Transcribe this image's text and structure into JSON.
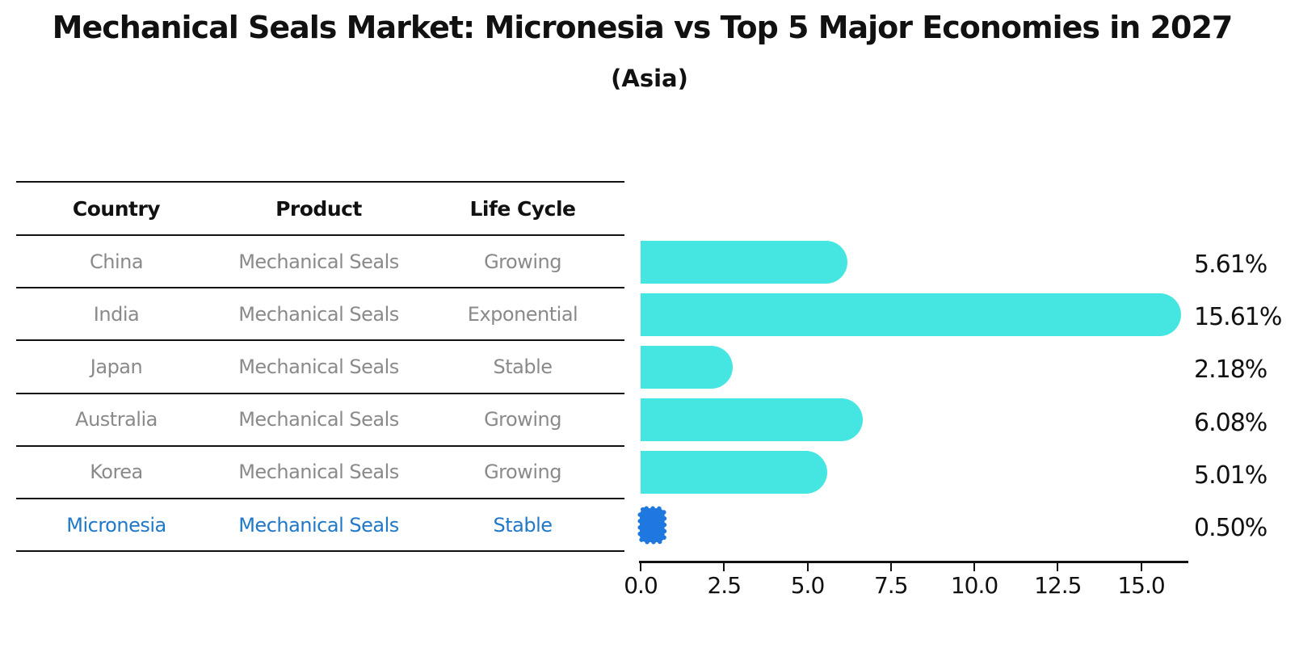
{
  "title": "Mechanical Seals Market: Micronesia vs Top 5 Major Economies in 2027",
  "subtitle": "(Asia)",
  "table": {
    "headers": {
      "country": "Country",
      "product": "Product",
      "life_cycle": "Life Cycle"
    },
    "rows": [
      {
        "country": "China",
        "product": "Mechanical Seals",
        "life_cycle": "Growing",
        "highlighted": false
      },
      {
        "country": "India",
        "product": "Mechanical Seals",
        "life_cycle": "Exponential",
        "highlighted": false
      },
      {
        "country": "Japan",
        "product": "Mechanical Seals",
        "life_cycle": "Stable",
        "highlighted": false
      },
      {
        "country": "Australia",
        "product": "Mechanical Seals",
        "life_cycle": "Growing",
        "highlighted": false
      },
      {
        "country": "Korea",
        "product": "Mechanical Seals",
        "life_cycle": "Growing",
        "highlighted": false
      },
      {
        "country": "Micronesia",
        "product": "Mechanical Seals",
        "life_cycle": "Stable",
        "highlighted": true
      }
    ]
  },
  "chart_data": {
    "type": "bar",
    "orientation": "horizontal",
    "categories": [
      "China",
      "India",
      "Japan",
      "Australia",
      "Korea",
      "Micronesia"
    ],
    "values": [
      5.61,
      15.61,
      2.18,
      6.08,
      5.01,
      0.5
    ],
    "value_labels": [
      "5.61%",
      "15.61%",
      "2.18%",
      "6.08%",
      "5.01%",
      "0.50%"
    ],
    "x_tick_values": [
      0,
      2.5,
      5,
      7.5,
      10,
      12.5,
      15
    ],
    "x_tick_labels": [
      "0.0",
      "2.5",
      "5.0",
      "7.5",
      "10.0",
      "12.5",
      "15.0"
    ],
    "xlim": [
      0,
      16.4
    ],
    "grid": false,
    "legend": false,
    "bar_color": "#45e6e2",
    "highlight_bar_color": "#1e78e0",
    "highlight_index": 5
  },
  "colors": {
    "title_text": "#111111",
    "table_header_text": "#111111",
    "table_row_text": "#8a8a8a",
    "highlight_row_text": "#1f78c8",
    "axis": "#111111",
    "value_label_text": "#111111"
  }
}
